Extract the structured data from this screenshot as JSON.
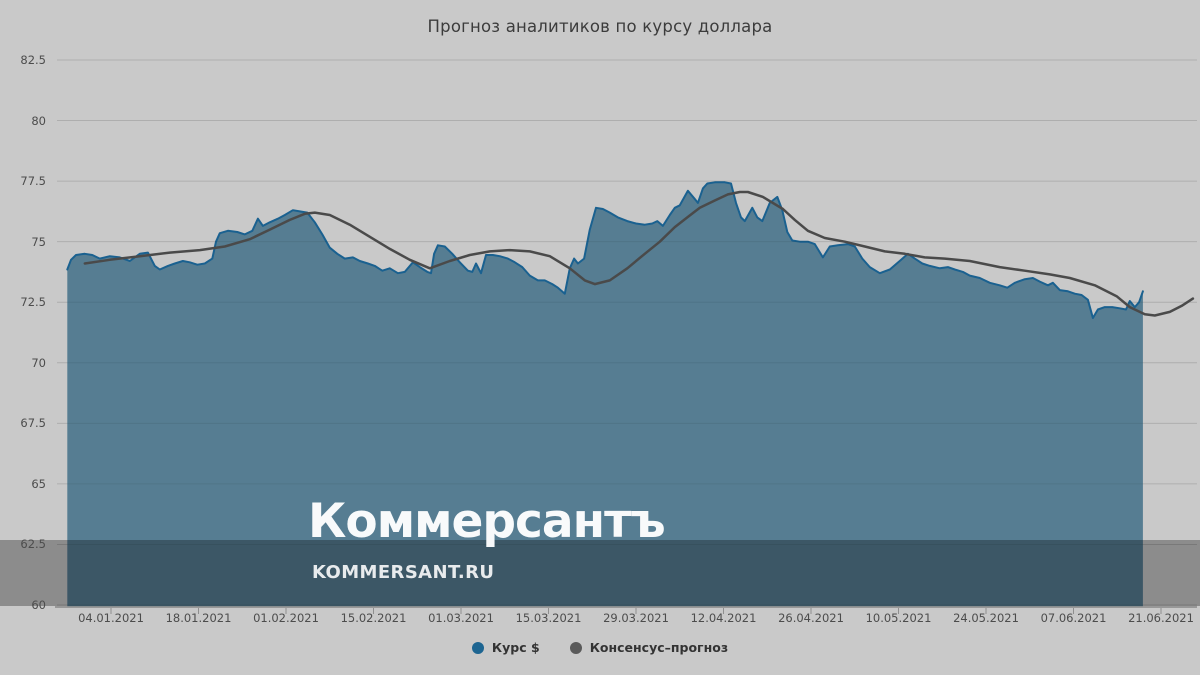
{
  "title": "Прогноз аналитиков по курсу доллара",
  "watermark": {
    "logo": "Коммерсантъ",
    "site": "KOMMERSANT.RU"
  },
  "legend": [
    {
      "label": "Курс $",
      "color": "#1d6591"
    },
    {
      "label": "Консенсус–прогноз",
      "color": "#5a5a5a"
    }
  ],
  "colors": {
    "background": "#c9c9c9",
    "area_fill": "#567d92",
    "area_stroke": "#1a6190",
    "consensus_line": "#4a4a4a",
    "gridline": "#bcbcbc",
    "dark_band": "rgba(0,0,0,0.30)",
    "axis_line": "#909090",
    "tick": "#8f8f8f",
    "label_text": "#4c4c4c"
  },
  "chart_data": {
    "type": "area",
    "title": "Прогноз аналитиков по курсу доллара",
    "xlabel": "",
    "ylabel": "",
    "x_unit": "days since 2021-01-01",
    "grid": true,
    "legend_position": "bottom",
    "x_axis": {
      "tick_labels": [
        "04.01.2021",
        "18.01.2021",
        "01.02.2021",
        "15.02.2021",
        "01.03.2021",
        "15.03.2021",
        "29.03.2021",
        "12.04.2021",
        "26.04.2021",
        "10.05.2021",
        "24.05.2021",
        "07.06.2021",
        "21.06.2021"
      ],
      "tick_days": [
        3,
        17,
        31,
        45,
        59,
        73,
        87,
        101,
        115,
        129,
        143,
        157,
        171
      ]
    },
    "y_axis": {
      "min": 60,
      "max": 82.5,
      "ticks": [
        60,
        62.5,
        65,
        67.5,
        70,
        72.5,
        75,
        77.5,
        80,
        82.5
      ],
      "tick_labels": [
        "60",
        "62.5",
        "65",
        "67.5",
        "70",
        "72.5",
        "75",
        "77.5",
        "80",
        "82.5"
      ]
    },
    "series": [
      {
        "name": "Курс $",
        "type": "area",
        "stroke": "#1a6190",
        "fill": "#567d92",
        "points": [
          [
            -4,
            73.85
          ],
          [
            -3.4,
            74.25
          ],
          [
            -2.6,
            74.45
          ],
          [
            -1.2,
            74.5
          ],
          [
            0,
            74.45
          ],
          [
            1.2,
            74.3
          ],
          [
            2.8,
            74.4
          ],
          [
            4.4,
            74.35
          ],
          [
            6,
            74.2
          ],
          [
            7.6,
            74.5
          ],
          [
            8.9,
            74.55
          ],
          [
            10,
            74.0
          ],
          [
            10.8,
            73.85
          ],
          [
            12.1,
            74.0
          ],
          [
            13.2,
            74.1
          ],
          [
            14.5,
            74.2
          ],
          [
            15.6,
            74.15
          ],
          [
            16.8,
            74.05
          ],
          [
            18,
            74.1
          ],
          [
            19.2,
            74.3
          ],
          [
            19.8,
            75.0
          ],
          [
            20.4,
            75.35
          ],
          [
            21.7,
            75.45
          ],
          [
            23.2,
            75.4
          ],
          [
            24.4,
            75.3
          ],
          [
            25.6,
            75.45
          ],
          [
            26.5,
            75.95
          ],
          [
            27.3,
            75.65
          ],
          [
            28.4,
            75.8
          ],
          [
            29.7,
            75.95
          ],
          [
            30.8,
            76.1
          ],
          [
            32.1,
            76.3
          ],
          [
            33.2,
            76.25
          ],
          [
            34.4,
            76.2
          ],
          [
            35.6,
            75.8
          ],
          [
            36.8,
            75.3
          ],
          [
            38,
            74.75
          ],
          [
            39.2,
            74.5
          ],
          [
            40.4,
            74.3
          ],
          [
            41.7,
            74.35
          ],
          [
            42.8,
            74.2
          ],
          [
            44.1,
            74.1
          ],
          [
            45.2,
            74.0
          ],
          [
            46.4,
            73.8
          ],
          [
            47.6,
            73.9
          ],
          [
            48.9,
            73.7
          ],
          [
            50,
            73.75
          ],
          [
            51.3,
            74.15
          ],
          [
            52.4,
            73.95
          ],
          [
            53.6,
            73.75
          ],
          [
            54.2,
            73.7
          ],
          [
            54.7,
            74.5
          ],
          [
            55.3,
            74.85
          ],
          [
            56.4,
            74.8
          ],
          [
            57.6,
            74.5
          ],
          [
            58.8,
            74.15
          ],
          [
            60.1,
            73.8
          ],
          [
            60.8,
            73.75
          ],
          [
            61.4,
            74.1
          ],
          [
            62.2,
            73.7
          ],
          [
            63,
            74.45
          ],
          [
            64.1,
            74.45
          ],
          [
            65.2,
            74.4
          ],
          [
            66.5,
            74.3
          ],
          [
            67.6,
            74.15
          ],
          [
            68.8,
            73.95
          ],
          [
            70,
            73.6
          ],
          [
            71.3,
            73.4
          ],
          [
            72.4,
            73.4
          ],
          [
            73.6,
            73.25
          ],
          [
            74.5,
            73.1
          ],
          [
            75.6,
            72.85
          ],
          [
            76.4,
            73.9
          ],
          [
            77.1,
            74.3
          ],
          [
            77.7,
            74.1
          ],
          [
            78.7,
            74.3
          ],
          [
            79.6,
            75.5
          ],
          [
            80.6,
            76.4
          ],
          [
            81.7,
            76.35
          ],
          [
            82.8,
            76.2
          ],
          [
            84.1,
            76.0
          ],
          [
            85.6,
            75.85
          ],
          [
            87,
            75.75
          ],
          [
            88.4,
            75.7
          ],
          [
            89.6,
            75.75
          ],
          [
            90.4,
            75.85
          ],
          [
            91.3,
            75.65
          ],
          [
            92.4,
            76.1
          ],
          [
            93.2,
            76.4
          ],
          [
            94,
            76.5
          ],
          [
            95.3,
            77.1
          ],
          [
            96.3,
            76.8
          ],
          [
            96.9,
            76.6
          ],
          [
            97.7,
            77.2
          ],
          [
            98.4,
            77.4
          ],
          [
            99.6,
            77.45
          ],
          [
            101.2,
            77.45
          ],
          [
            102.2,
            77.4
          ],
          [
            103,
            76.6
          ],
          [
            103.8,
            76.0
          ],
          [
            104.4,
            75.85
          ],
          [
            105.6,
            76.4
          ],
          [
            106.4,
            76.0
          ],
          [
            107.2,
            75.85
          ],
          [
            108.4,
            76.6
          ],
          [
            109.6,
            76.85
          ],
          [
            110.4,
            76.3
          ],
          [
            111.2,
            75.4
          ],
          [
            112,
            75.05
          ],
          [
            113.2,
            75.0
          ],
          [
            114.5,
            75.0
          ],
          [
            115.6,
            74.9
          ],
          [
            116.9,
            74.35
          ],
          [
            118,
            74.8
          ],
          [
            119.3,
            74.85
          ],
          [
            120.9,
            74.9
          ],
          [
            122,
            74.8
          ],
          [
            123.2,
            74.3
          ],
          [
            124.4,
            73.95
          ],
          [
            126,
            73.7
          ],
          [
            127.6,
            73.85
          ],
          [
            129.2,
            74.2
          ],
          [
            130.5,
            74.5
          ],
          [
            131.6,
            74.3
          ],
          [
            132.8,
            74.1
          ],
          [
            134,
            74.0
          ],
          [
            135.6,
            73.9
          ],
          [
            136.9,
            73.95
          ],
          [
            138,
            73.85
          ],
          [
            139.3,
            73.75
          ],
          [
            140.4,
            73.6
          ],
          [
            142,
            73.5
          ],
          [
            143.6,
            73.3
          ],
          [
            145.2,
            73.2
          ],
          [
            146.4,
            73.1
          ],
          [
            147.6,
            73.3
          ],
          [
            149.2,
            73.45
          ],
          [
            150.5,
            73.5
          ],
          [
            151.6,
            73.35
          ],
          [
            152.9,
            73.2
          ],
          [
            153.7,
            73.3
          ],
          [
            154.8,
            73.0
          ],
          [
            156.1,
            72.95
          ],
          [
            157.2,
            72.85
          ],
          [
            158.3,
            72.8
          ],
          [
            159.3,
            72.6
          ],
          [
            160.1,
            71.85
          ],
          [
            160.9,
            72.2
          ],
          [
            162,
            72.3
          ],
          [
            163.2,
            72.3
          ],
          [
            164.4,
            72.25
          ],
          [
            165.4,
            72.2
          ],
          [
            166,
            72.55
          ],
          [
            166.8,
            72.3
          ],
          [
            167.5,
            72.5
          ],
          [
            168.1,
            72.95
          ]
        ]
      },
      {
        "name": "Консенсус–прогноз",
        "type": "line",
        "stroke": "#4a4a4a",
        "points": [
          [
            -1.2,
            74.1
          ],
          [
            2.8,
            74.25
          ],
          [
            7.6,
            74.4
          ],
          [
            12.4,
            74.55
          ],
          [
            17.2,
            74.65
          ],
          [
            21.2,
            74.8
          ],
          [
            25.2,
            75.1
          ],
          [
            28.4,
            75.5
          ],
          [
            31.6,
            75.9
          ],
          [
            34,
            76.15
          ],
          [
            35.6,
            76.2
          ],
          [
            38,
            76.1
          ],
          [
            41.2,
            75.7
          ],
          [
            44.4,
            75.2
          ],
          [
            47.6,
            74.7
          ],
          [
            50.8,
            74.25
          ],
          [
            54,
            73.9
          ],
          [
            57.2,
            74.2
          ],
          [
            60.4,
            74.45
          ],
          [
            63.6,
            74.6
          ],
          [
            66.8,
            74.65
          ],
          [
            70,
            74.6
          ],
          [
            73.2,
            74.4
          ],
          [
            76.4,
            73.9
          ],
          [
            78.8,
            73.4
          ],
          [
            80.4,
            73.25
          ],
          [
            82.8,
            73.4
          ],
          [
            85.6,
            73.9
          ],
          [
            88.4,
            74.5
          ],
          [
            90.8,
            75.0
          ],
          [
            93.2,
            75.6
          ],
          [
            95.2,
            76.0
          ],
          [
            97.2,
            76.4
          ],
          [
            99.6,
            76.7
          ],
          [
            101.7,
            76.95
          ],
          [
            103.6,
            77.05
          ],
          [
            104.9,
            77.05
          ],
          [
            107.3,
            76.85
          ],
          [
            110.5,
            76.35
          ],
          [
            112.4,
            75.9
          ],
          [
            114.5,
            75.45
          ],
          [
            117.2,
            75.15
          ],
          [
            120.4,
            75.0
          ],
          [
            123.6,
            74.8
          ],
          [
            126.8,
            74.6
          ],
          [
            130,
            74.5
          ],
          [
            133.2,
            74.35
          ],
          [
            136.4,
            74.3
          ],
          [
            140.4,
            74.2
          ],
          [
            145.2,
            73.95
          ],
          [
            149.2,
            73.8
          ],
          [
            153.2,
            73.65
          ],
          [
            156.4,
            73.5
          ],
          [
            160.4,
            73.2
          ],
          [
            163.9,
            72.75
          ],
          [
            166,
            72.3
          ],
          [
            168.4,
            72.0
          ],
          [
            170,
            71.95
          ],
          [
            172.4,
            72.1
          ],
          [
            174.3,
            72.35
          ],
          [
            176.1,
            72.65
          ]
        ]
      }
    ]
  }
}
